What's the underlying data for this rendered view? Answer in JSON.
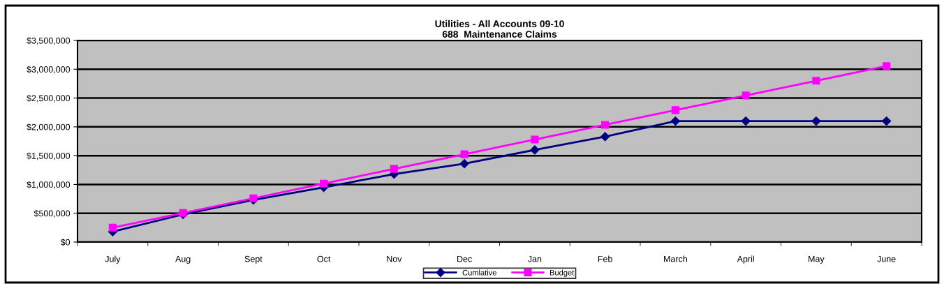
{
  "chart_data": {
    "type": "line",
    "title": "Utilities - All Accounts 09-10\n688  Maintenance Claims",
    "categories": [
      "July",
      "Aug",
      "Sept",
      "Oct",
      "Nov",
      "Dec",
      "Jan",
      "Feb",
      "March",
      "April",
      "May",
      "June"
    ],
    "series": [
      {
        "name": "Cumlative",
        "color": "#000080",
        "marker": "diamond",
        "values": [
          180000,
          480000,
          730000,
          950000,
          1180000,
          1360000,
          1600000,
          1830000,
          2100000,
          2100000,
          2100000,
          2100000
        ]
      },
      {
        "name": "Budget",
        "color": "#ff00ff",
        "marker": "square",
        "values": [
          250000,
          505000,
          760000,
          1015000,
          1270000,
          1525000,
          1780000,
          2035000,
          2290000,
          2545000,
          2800000,
          3055000
        ]
      }
    ],
    "ylim": [
      0,
      3500000
    ],
    "yticks": [
      {
        "value": 0,
        "label": "$0"
      },
      {
        "value": 500000,
        "label": "$500,000"
      },
      {
        "value": 1000000,
        "label": "$1,000,000"
      },
      {
        "value": 1500000,
        "label": "$1,500,000"
      },
      {
        "value": 2000000,
        "label": "$2,000,000"
      },
      {
        "value": 2500000,
        "label": "$2,500,000"
      },
      {
        "value": 3000000,
        "label": "$3,000,000"
      },
      {
        "value": 3500000,
        "label": "$3,500,000"
      }
    ],
    "grid": "y",
    "legend": "bottom"
  }
}
